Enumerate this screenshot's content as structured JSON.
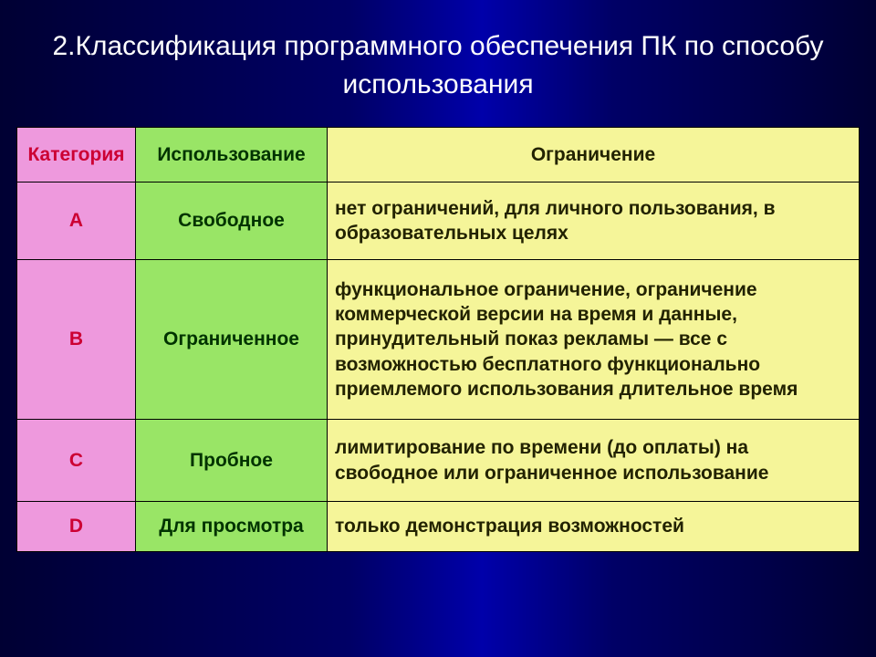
{
  "title": "2.Классификация программного обеспечения ПК по способу использования",
  "table": {
    "headers": {
      "category": "Категория",
      "usage": "Использование",
      "limitation": "Ограничение"
    },
    "rows": [
      {
        "category": "A",
        "usage": "Свободное",
        "limitation": "нет ограничений, для личного пользования, в образовательных целях"
      },
      {
        "category": "B",
        "usage": "Ограниченное",
        "limitation": "функциональное ограничение, ограничение коммерческой версии на время и данные, принудительный показ рекламы — все с возможностью бесплатного функционально приемлемого использования длительное время"
      },
      {
        "category": "C",
        "usage": "Пробное",
        "limitation": "лимитирование по времени (до оплаты) на свободное или ограниченное использование"
      },
      {
        "category": "D",
        "usage": "Для просмотра",
        "limitation": "только демонстрация возможностей"
      }
    ],
    "colors": {
      "pink": "#ee99dd",
      "green": "#99e566",
      "yellow": "#f5f599",
      "pink_text": "#cc0033",
      "green_text": "#003300",
      "yellow_text": "#222200",
      "background_deep": "#000033",
      "title_text": "#ffffff"
    }
  }
}
